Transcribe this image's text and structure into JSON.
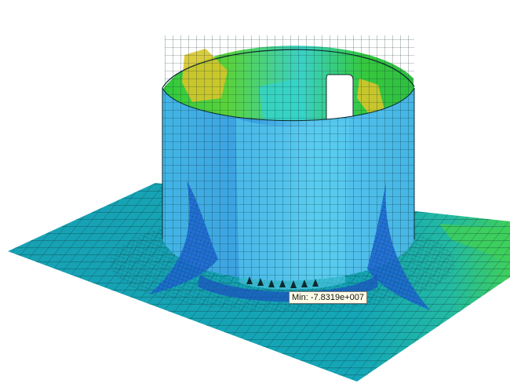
{
  "viewer": {
    "min_label": "Min: -7.8319e+007"
  },
  "contour_colors": {
    "plate_base": "#12a7b4",
    "plate_green": "#3ecf5a",
    "shell_outer": "#3fa9e0",
    "shell_light": "#5fd0ee",
    "shell_dark": "#1c66d2",
    "inner_green": "#36d43a",
    "inner_yellow": "#d7c52a",
    "inner_cyan": "#35d3c9",
    "mesh_line": "#0b2a2f"
  }
}
